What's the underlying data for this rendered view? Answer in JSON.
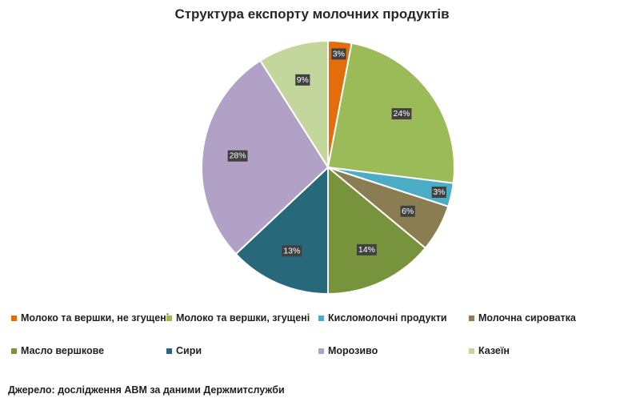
{
  "chart_data": {
    "type": "pie",
    "title": "Структура експорту молочних продуктів",
    "categories": [
      "Молоко та вершки, не згущені",
      "Молоко та вершки, згущені",
      "Кисломолочні  продукти",
      "Молочна сироватка",
      "Масло вершкове",
      "Сири",
      "Морозиво",
      "Казеїн"
    ],
    "values": [
      3,
      24,
      3,
      6,
      14,
      13,
      28,
      9
    ],
    "labels": [
      "3%",
      "24%",
      "3%",
      "6%",
      "14%",
      "13%",
      "28%",
      "9%"
    ],
    "colors": [
      "#e46c0a",
      "#9bbb59",
      "#4bacc6",
      "#8b7d52",
      "#77933c",
      "#27687a",
      "#b2a1c7",
      "#c3d69b"
    ],
    "legend_placement": "bottom"
  },
  "source": "Джерело: дослідження АВМ за даними Держмитслужби"
}
